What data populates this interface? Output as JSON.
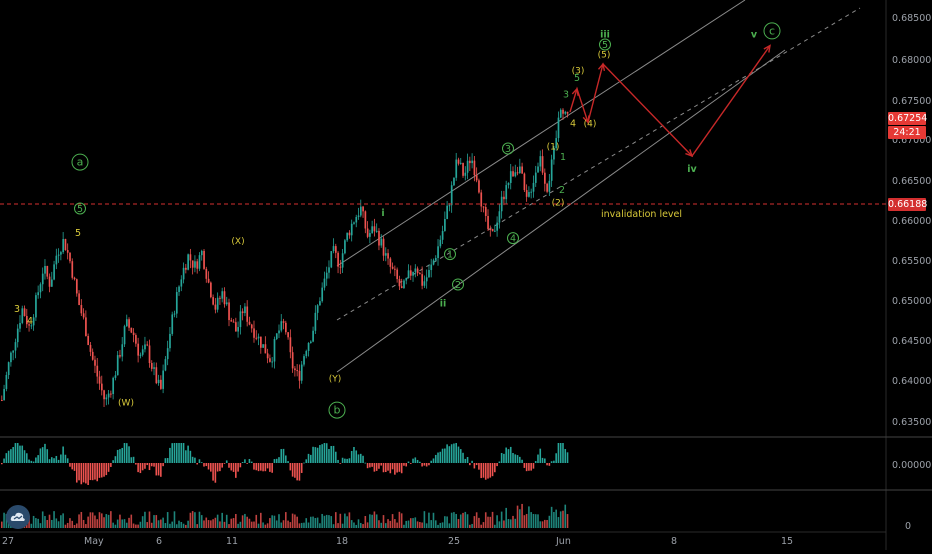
{
  "colors": {
    "background": "#000000",
    "up": "#26a69a",
    "down": "#ef5350",
    "wave_label_yellow": "#d8c93a",
    "wave_label_green": "#4caf50",
    "channel": "#8a8a8a",
    "projection": "#c62828",
    "invalidation": "#d32f2f",
    "last_price_tag": "#e53935",
    "grid_separator": "#444444",
    "axis_text": "#9ba0a8"
  },
  "axes": {
    "price_ticks": [
      "0.68500",
      "0.68000",
      "0.67500",
      "0.67000",
      "0.66500",
      "0.66000",
      "0.65500",
      "0.65000",
      "0.64500",
      "0.64000",
      "0.63500"
    ],
    "date_ticks": [
      "27",
      "May",
      "6",
      "11",
      "18",
      "25",
      "Jun",
      "8",
      "15"
    ],
    "osc_tick": "0.00000",
    "vol_tick": "0"
  },
  "price_tags": {
    "last_price": "0.67254",
    "countdown": "24:21",
    "invalidation_price": "0.66188"
  },
  "annotations": {
    "invalidation_text": "invalidation level"
  },
  "chart_data": {
    "type": "candlestick",
    "ylim": [
      0.6335,
      0.6875
    ],
    "price_path": [
      [
        0.6375,
        0.642,
        0.6455,
        0.649,
        0.6465,
        0.65,
        0.654,
        0.652,
        0.656,
        0.6575,
        0.6545,
        0.65,
        0.647,
        0.643,
        0.64,
        0.6372,
        0.6395,
        0.643,
        0.647,
        0.646,
        0.643,
        0.644,
        0.641,
        0.6385,
        0.644,
        0.649,
        0.653,
        0.6555,
        0.6542,
        0.656,
        0.652,
        0.649,
        0.651,
        0.648,
        0.646,
        0.649,
        0.647,
        0.6455,
        0.644,
        0.6425,
        0.646,
        0.647,
        0.642,
        0.6402,
        0.644,
        0.646,
        0.65,
        0.653,
        0.656,
        0.6545,
        0.658,
        0.66,
        0.6615,
        0.658,
        0.659,
        0.657,
        0.6545,
        0.653,
        0.651,
        0.653,
        0.6545,
        0.652,
        0.6535,
        0.656,
        0.659,
        0.663,
        0.6675,
        0.6655,
        0.668,
        0.665,
        0.66,
        0.6575,
        0.661,
        0.664,
        0.666,
        0.667,
        0.662,
        0.665,
        0.668,
        0.664,
        0.668,
        0.6745,
        0.673
      ]
    ],
    "wave_labels": [
      {
        "text": "3",
        "color": "yellow",
        "price": 0.6485
      },
      {
        "text": "4",
        "color": "yellow",
        "price": 0.647
      },
      {
        "text": "5",
        "color": "yellow",
        "price": 0.658
      },
      {
        "text": "(W)",
        "color": "yellow",
        "price": 0.6368
      },
      {
        "text": "(X)",
        "color": "yellow",
        "price": 0.657
      },
      {
        "text": "(Y)",
        "color": "yellow",
        "price": 0.6398
      },
      {
        "text": "i",
        "color": "green",
        "price": 0.6605
      },
      {
        "text": "ii",
        "color": "green",
        "price": 0.6492
      },
      {
        "text": "1",
        "color": "green",
        "circled": true,
        "price": 0.6553
      },
      {
        "text": "2",
        "color": "green",
        "circled": true,
        "price": 0.6515
      },
      {
        "text": "3",
        "color": "green",
        "circled": true,
        "price": 0.6685
      },
      {
        "text": "4",
        "color": "green",
        "circled": true,
        "price": 0.6573
      },
      {
        "text": "(1)",
        "color": "yellow",
        "price": 0.6688
      },
      {
        "text": "(2)",
        "color": "yellow",
        "price": 0.6618
      },
      {
        "text": "1",
        "color": "green",
        "price": 0.6675
      },
      {
        "text": "2",
        "color": "green",
        "price": 0.6634
      },
      {
        "text": "3",
        "color": "green",
        "price": 0.6753
      },
      {
        "text": "4",
        "color": "yellow",
        "price": 0.6717
      },
      {
        "text": "5",
        "color": "green",
        "price": 0.6774
      },
      {
        "text": "(3)",
        "color": "yellow",
        "price": 0.6783
      },
      {
        "text": "(4)",
        "color": "yellow",
        "price": 0.6717
      },
      {
        "text": "(5)",
        "color": "yellow",
        "price": 0.6803
      },
      {
        "text": "5",
        "color": "green",
        "circled": true,
        "price": 0.6815
      },
      {
        "text": "iii",
        "color": "green",
        "price": 0.6828
      },
      {
        "text": "iv",
        "color": "green",
        "price": 0.666
      },
      {
        "text": "v",
        "color": "green",
        "price": 0.6828
      },
      {
        "text": "c",
        "color": "green",
        "circled": true,
        "price": 0.6832
      },
      {
        "text": "a",
        "color": "green",
        "circled": true,
        "price": 0.6668
      },
      {
        "text": "5",
        "color": "green",
        "circled": true,
        "price": 0.661
      },
      {
        "text": "b",
        "color": "green",
        "circled": true,
        "price": 0.6358
      }
    ],
    "projection_path_prices": [
      0.6735,
      0.6764,
      0.6722,
      0.6795,
      0.668,
      0.6818
    ],
    "invalidation_level": 0.66188
  }
}
